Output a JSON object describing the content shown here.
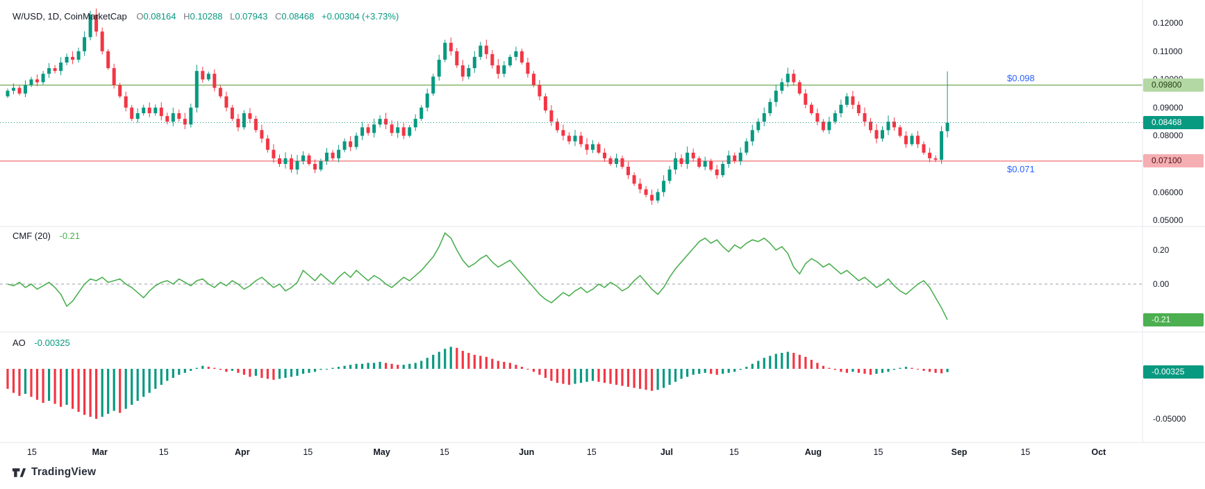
{
  "header": {
    "symbol": "W/USD, 1D, CoinMarketCap",
    "ohlc": {
      "o_label": "O",
      "o": "0.08164",
      "h_label": "H",
      "h": "0.10288",
      "l_label": "L",
      "l": "0.07943",
      "c_label": "C",
      "c": "0.08468",
      "change": "+0.00304 (+3.73%)"
    }
  },
  "indicators": {
    "cmf": {
      "label": "CMF (20)",
      "value": "-0.21"
    },
    "ao": {
      "label": "AO",
      "value": "-0.00325"
    }
  },
  "footer": {
    "brand": "TradingView"
  },
  "colors": {
    "up": "#089981",
    "down": "#f23645",
    "cmf_line": "#4caf50",
    "zero_line": "#9b9eab",
    "separator": "#e4e7ee",
    "axis_text": "#131722",
    "muted_text": "#787b86",
    "level_tag_text": "#2962ff",
    "background": "#ffffff"
  },
  "time_axis": {
    "ticks": [
      {
        "pos": 4.1,
        "label": "15",
        "bold": false
      },
      {
        "pos": 15.6,
        "label": "Mar",
        "bold": true
      },
      {
        "pos": 26.4,
        "label": "15",
        "bold": false
      },
      {
        "pos": 39.7,
        "label": "Apr",
        "bold": true
      },
      {
        "pos": 50.8,
        "label": "15",
        "bold": false
      },
      {
        "pos": 63.3,
        "label": "May",
        "bold": true
      },
      {
        "pos": 73.9,
        "label": "15",
        "bold": false
      },
      {
        "pos": 87.8,
        "label": "Jun",
        "bold": true
      },
      {
        "pos": 98.8,
        "label": "15",
        "bold": false
      },
      {
        "pos": 111.5,
        "label": "Jul",
        "bold": true
      },
      {
        "pos": 122.9,
        "label": "15",
        "bold": false
      },
      {
        "pos": 136.3,
        "label": "Aug",
        "bold": true
      },
      {
        "pos": 147.3,
        "label": "15",
        "bold": false
      },
      {
        "pos": 161.0,
        "label": "Sep",
        "bold": true
      },
      {
        "pos": 172.2,
        "label": "15",
        "bold": false
      },
      {
        "pos": 184.6,
        "label": "Oct",
        "bold": true
      }
    ]
  },
  "chart_data": [
    {
      "type": "candlestick",
      "title": "W/USD, 1D, CoinMarketCap",
      "symbol": "W/USD",
      "interval": "1D",
      "source": "CoinMarketCap",
      "last": {
        "o": 0.08164,
        "h": 0.10288,
        "l": 0.07943,
        "c": 0.08468
      },
      "change_text": "+0.00304 (+3.73%)",
      "first_open": 0.094,
      "wick": 0.0015,
      "ylim": [
        0.0478,
        0.1282
      ],
      "closes": [
        0.096,
        0.097,
        0.095,
        0.098,
        0.1,
        0.099,
        0.102,
        0.104,
        0.103,
        0.106,
        0.108,
        0.107,
        0.11,
        0.115,
        0.123,
        0.117,
        0.11,
        0.104,
        0.098,
        0.094,
        0.09,
        0.086,
        0.088,
        0.09,
        0.088,
        0.09,
        0.087,
        0.085,
        0.088,
        0.086,
        0.084,
        0.09,
        0.103,
        0.1,
        0.102,
        0.097,
        0.094,
        0.09,
        0.086,
        0.083,
        0.088,
        0.086,
        0.082,
        0.079,
        0.075,
        0.072,
        0.07,
        0.072,
        0.068,
        0.071,
        0.073,
        0.07,
        0.068,
        0.071,
        0.074,
        0.072,
        0.075,
        0.078,
        0.076,
        0.08,
        0.083,
        0.081,
        0.084,
        0.086,
        0.084,
        0.081,
        0.083,
        0.08,
        0.083,
        0.086,
        0.09,
        0.095,
        0.101,
        0.107,
        0.113,
        0.11,
        0.105,
        0.101,
        0.104,
        0.108,
        0.112,
        0.109,
        0.105,
        0.102,
        0.105,
        0.108,
        0.11,
        0.106,
        0.102,
        0.098,
        0.094,
        0.089,
        0.085,
        0.082,
        0.08,
        0.078,
        0.08,
        0.077,
        0.075,
        0.077,
        0.074,
        0.072,
        0.07,
        0.072,
        0.069,
        0.066,
        0.063,
        0.061,
        0.059,
        0.057,
        0.06,
        0.064,
        0.068,
        0.072,
        0.07,
        0.074,
        0.072,
        0.069,
        0.071,
        0.068,
        0.066,
        0.07,
        0.073,
        0.071,
        0.074,
        0.078,
        0.082,
        0.085,
        0.088,
        0.092,
        0.096,
        0.099,
        0.102,
        0.099,
        0.095,
        0.091,
        0.088,
        0.085,
        0.082,
        0.085,
        0.088,
        0.091,
        0.094,
        0.091,
        0.088,
        0.085,
        0.082,
        0.079,
        0.082,
        0.085,
        0.083,
        0.08,
        0.077,
        0.08,
        0.077,
        0.074,
        0.072,
        0.0715,
        0.0816,
        0.08468
      ],
      "y_ticks": [
        {
          "label": "0.12000",
          "value": 0.12
        },
        {
          "label": "0.11000",
          "value": 0.11
        },
        {
          "label": "0.10000",
          "value": 0.1
        },
        {
          "label": "0.09000",
          "value": 0.09
        },
        {
          "label": "0.08000",
          "value": 0.08
        },
        {
          "label": "0.06000",
          "value": 0.06
        },
        {
          "label": "0.05000",
          "value": 0.05
        }
      ],
      "last_badge": {
        "label": "0.08468",
        "bg": "#089981",
        "fg": "#ffffff"
      },
      "levels": [
        {
          "tag": "$0.098",
          "price": 0.098,
          "axis_label": "0.09800",
          "line_color": "#6fa84f",
          "badge_bg": "#b4d8a4",
          "badge_fg": "#1f3a12",
          "tag_position": "above"
        },
        {
          "tag": "$0.071",
          "price": 0.071,
          "axis_label": "0.07100",
          "line_color": "#ef6e70",
          "badge_bg": "#f5aeb2",
          "badge_fg": "#47121a",
          "tag_position": "below"
        }
      ]
    },
    {
      "type": "line",
      "name": "CMF (20)",
      "last": -0.21,
      "color": "#4caf50",
      "ylim": [
        -0.282,
        0.339
      ],
      "zero_line_dashed": true,
      "values": [
        0.0,
        -0.01,
        0.01,
        -0.02,
        0.0,
        -0.03,
        -0.01,
        0.01,
        -0.02,
        -0.06,
        -0.13,
        -0.1,
        -0.05,
        0.0,
        0.03,
        0.02,
        0.04,
        0.01,
        0.02,
        0.03,
        0.0,
        -0.02,
        -0.05,
        -0.08,
        -0.04,
        -0.01,
        0.01,
        0.02,
        0.0,
        0.03,
        0.01,
        -0.01,
        0.02,
        0.03,
        0.0,
        -0.02,
        0.01,
        -0.01,
        0.02,
        0.0,
        -0.03,
        -0.01,
        0.02,
        0.04,
        0.01,
        -0.02,
        0.0,
        -0.04,
        -0.02,
        0.01,
        0.08,
        0.05,
        0.02,
        0.06,
        0.03,
        0.0,
        0.04,
        0.07,
        0.04,
        0.08,
        0.05,
        0.02,
        0.05,
        0.03,
        0.0,
        -0.02,
        0.01,
        0.04,
        0.02,
        0.05,
        0.08,
        0.12,
        0.16,
        0.22,
        0.3,
        0.27,
        0.2,
        0.14,
        0.1,
        0.12,
        0.15,
        0.17,
        0.13,
        0.1,
        0.12,
        0.14,
        0.1,
        0.06,
        0.02,
        -0.02,
        -0.06,
        -0.09,
        -0.11,
        -0.08,
        -0.05,
        -0.07,
        -0.04,
        -0.02,
        -0.05,
        -0.03,
        0.0,
        -0.02,
        0.01,
        -0.01,
        -0.04,
        -0.02,
        0.02,
        0.05,
        0.01,
        -0.03,
        -0.06,
        -0.02,
        0.04,
        0.09,
        0.13,
        0.17,
        0.21,
        0.25,
        0.27,
        0.24,
        0.26,
        0.22,
        0.19,
        0.23,
        0.21,
        0.24,
        0.26,
        0.25,
        0.27,
        0.24,
        0.2,
        0.22,
        0.18,
        0.1,
        0.06,
        0.12,
        0.15,
        0.13,
        0.1,
        0.12,
        0.09,
        0.06,
        0.08,
        0.05,
        0.02,
        0.04,
        0.01,
        -0.02,
        0.0,
        0.03,
        -0.01,
        -0.04,
        -0.06,
        -0.03,
        0.0,
        0.02,
        -0.02,
        -0.08,
        -0.14,
        -0.21
      ],
      "y_ticks": [
        {
          "label": "0.20",
          "value": 0.2
        },
        {
          "label": "0.00",
          "value": 0.0
        }
      ],
      "last_badge": {
        "label": "-0.21",
        "bg": "#4caf50",
        "fg": "#ffffff"
      }
    },
    {
      "type": "bar",
      "name": "AO",
      "last": -0.00325,
      "ylim": [
        -0.0736,
        0.0368
      ],
      "values": [
        -0.02,
        -0.024,
        -0.027,
        -0.025,
        -0.028,
        -0.031,
        -0.034,
        -0.032,
        -0.035,
        -0.038,
        -0.036,
        -0.04,
        -0.043,
        -0.046,
        -0.048,
        -0.05,
        -0.048,
        -0.045,
        -0.042,
        -0.044,
        -0.04,
        -0.036,
        -0.032,
        -0.028,
        -0.024,
        -0.02,
        -0.016,
        -0.012,
        -0.009,
        -0.006,
        -0.004,
        -0.002,
        0.001,
        0.003,
        0.002,
        0.001,
        -0.001,
        -0.003,
        -0.002,
        -0.004,
        -0.006,
        -0.008,
        -0.007,
        -0.009,
        -0.01,
        -0.011,
        -0.01,
        -0.009,
        -0.008,
        -0.007,
        -0.005,
        -0.004,
        -0.003,
        -0.001,
        0.0,
        0.001,
        0.002,
        0.003,
        0.004,
        0.005,
        0.005,
        0.006,
        0.006,
        0.007,
        0.006,
        0.005,
        0.004,
        0.004,
        0.005,
        0.006,
        0.008,
        0.011,
        0.014,
        0.017,
        0.02,
        0.022,
        0.021,
        0.018,
        0.016,
        0.014,
        0.013,
        0.012,
        0.01,
        0.008,
        0.007,
        0.006,
        0.004,
        0.002,
        0.0,
        -0.003,
        -0.006,
        -0.009,
        -0.012,
        -0.014,
        -0.015,
        -0.016,
        -0.015,
        -0.014,
        -0.013,
        -0.012,
        -0.013,
        -0.014,
        -0.015,
        -0.016,
        -0.017,
        -0.018,
        -0.019,
        -0.02,
        -0.021,
        -0.022,
        -0.021,
        -0.019,
        -0.016,
        -0.013,
        -0.01,
        -0.008,
        -0.006,
        -0.005,
        -0.004,
        -0.005,
        -0.006,
        -0.005,
        -0.004,
        -0.003,
        -0.001,
        0.002,
        0.005,
        0.008,
        0.011,
        0.013,
        0.015,
        0.016,
        0.017,
        0.016,
        0.014,
        0.012,
        0.009,
        0.006,
        0.003,
        0.001,
        -0.001,
        -0.003,
        -0.004,
        -0.003,
        -0.004,
        -0.005,
        -0.006,
        -0.005,
        -0.004,
        -0.003,
        -0.001,
        0.001,
        0.002,
        0.001,
        0.0,
        -0.002,
        -0.003,
        -0.004,
        -0.0045,
        -0.00325
      ],
      "y_ticks": [
        {
          "label": "-0.05000",
          "value": -0.05
        }
      ],
      "last_badge": {
        "label": "-0.00325",
        "bg": "#089981",
        "fg": "#ffffff"
      }
    }
  ]
}
